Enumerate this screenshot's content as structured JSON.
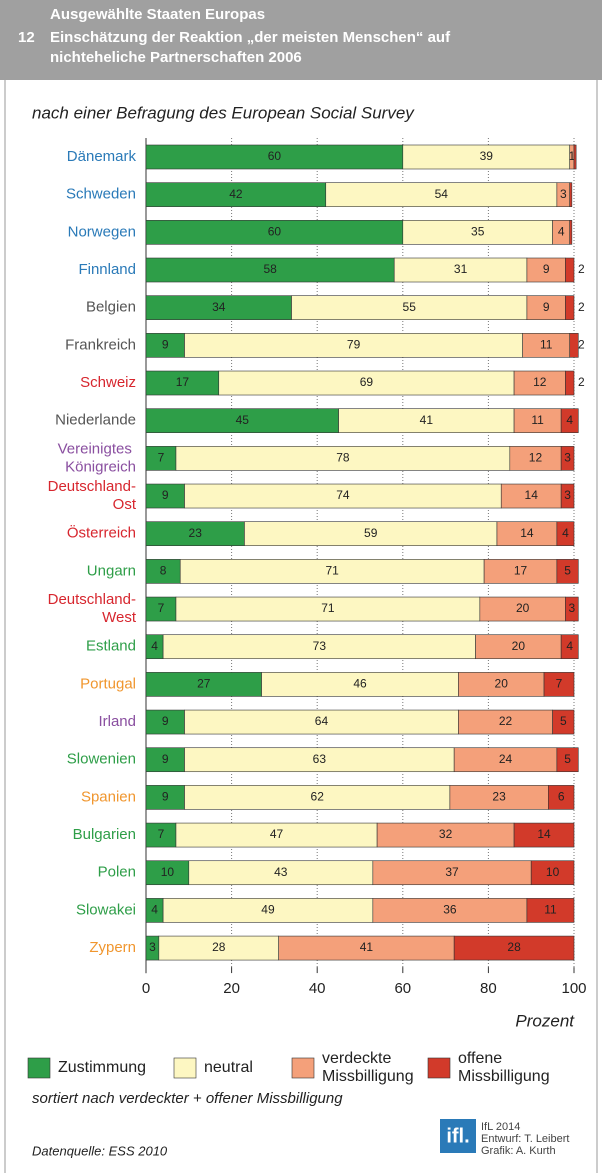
{
  "chart_data": {
    "type": "stacked-barh",
    "title": {
      "number": "12",
      "overline": "Ausgewählte Staaten Europas",
      "lines": [
        "Einschätzung der Reaktion „der meisten Menschen“ auf",
        "nichteheliche Partnerschaften 2006"
      ]
    },
    "subtitle": "nach einer Befragung des European Social Survey",
    "categories": [
      "Dänemark",
      "Schweden",
      "Norwegen",
      "Finnland",
      "Belgien",
      "Frankreich",
      "Schweiz",
      "Niederlande",
      "Vereinigtes Königreich",
      "Deutschland-Ost",
      "Österreich",
      "Ungarn",
      "Deutschland-West",
      "Estland",
      "Portugal",
      "Irland",
      "Slowenien",
      "Spanien",
      "Bulgarien",
      "Polen",
      "Slowakei",
      "Zypern"
    ],
    "category_colors": [
      "#2a7ab8",
      "#2a7ab8",
      "#2a7ab8",
      "#2a7ab8",
      "#555555",
      "#555555",
      "#d7262e",
      "#555555",
      "#8a4fa0",
      "#d7262e",
      "#d7262e",
      "#2e9e48",
      "#d7262e",
      "#2e9e48",
      "#f0962e",
      "#8a4fa0",
      "#2e9e48",
      "#f0962e",
      "#2e9e48",
      "#2e9e48",
      "#2e9e48",
      "#f0962e"
    ],
    "series": [
      {
        "name": "Zustimmung",
        "color": "#2e9e48",
        "values": [
          60,
          42,
          60,
          58,
          34,
          9,
          17,
          45,
          7,
          9,
          23,
          8,
          7,
          4,
          27,
          9,
          9,
          9,
          7,
          10,
          4,
          3
        ]
      },
      {
        "name": "neutral",
        "color": "#fdf7c2",
        "values": [
          39,
          54,
          35,
          31,
          55,
          79,
          69,
          41,
          78,
          74,
          59,
          71,
          71,
          73,
          46,
          64,
          63,
          62,
          47,
          43,
          49,
          28
        ]
      },
      {
        "name": "verdeckte Missbilligung",
        "color": "#f4a07a",
        "values": [
          1,
          3,
          4,
          9,
          9,
          11,
          12,
          11,
          12,
          14,
          14,
          17,
          20,
          20,
          20,
          22,
          24,
          23,
          32,
          37,
          36,
          41
        ]
      },
      {
        "name": "offene Missbilligung",
        "color": "#d23a2a",
        "values": [
          0.5,
          0.5,
          0.5,
          2,
          2,
          2,
          2,
          4,
          3,
          3,
          4,
          5,
          3,
          4,
          7,
          5,
          5,
          6,
          14,
          10,
          11,
          28
        ]
      }
    ],
    "xlim": [
      0,
      100
    ],
    "xticks": [
      0,
      20,
      40,
      60,
      80,
      100
    ],
    "xlabel": "Prozent",
    "grid": true,
    "note": "sortiert nach verdeckter + offener Missbilligung",
    "source": "Datenquelle: ESS 2010",
    "logo": "ifl.",
    "credits": [
      "IfL 2014",
      "Entwurf: T. Leibert",
      "Grafik: A. Kurth"
    ]
  }
}
